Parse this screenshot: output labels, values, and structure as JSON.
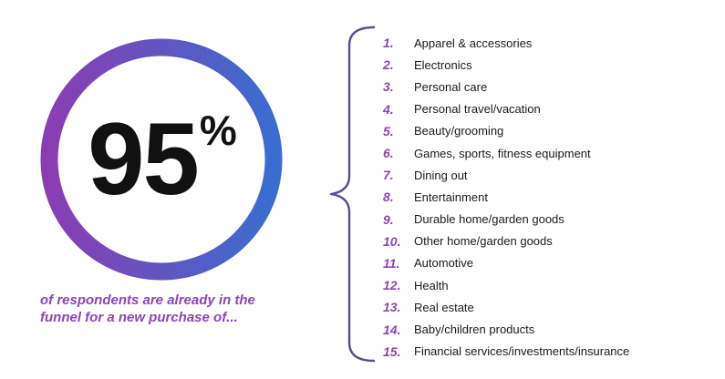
{
  "colors": {
    "ring_gradient_start": "#8a3db3",
    "ring_gradient_end": "#3a6dd0",
    "accent_purple": "#8c45b5",
    "brace": "#5b4a9a",
    "text_dark": "#111111"
  },
  "headline": {
    "number": "95",
    "suffix": "%"
  },
  "caption": {
    "line1": "of respondents are already in the",
    "line2": "funnel for a new purchase of..."
  },
  "list": {
    "items": [
      {
        "index": "1.",
        "label": "Apparel & accessories"
      },
      {
        "index": "2.",
        "label": "Electronics"
      },
      {
        "index": "3.",
        "label": "Personal care"
      },
      {
        "index": "4.",
        "label": "Personal travel/vacation"
      },
      {
        "index": "5.",
        "label": "Beauty/grooming"
      },
      {
        "index": "6.",
        "label": "Games, sports, fitness equipment"
      },
      {
        "index": "7.",
        "label": "Dining out"
      },
      {
        "index": "8.",
        "label": "Entertainment"
      },
      {
        "index": "9.",
        "label": "Durable home/garden goods"
      },
      {
        "index": "10.",
        "label": "Other home/garden goods"
      },
      {
        "index": "11.",
        "label": "Automotive"
      },
      {
        "index": "12.",
        "label": "Health"
      },
      {
        "index": "13.",
        "label": "Real estate"
      },
      {
        "index": "14.",
        "label": "Baby/children products"
      },
      {
        "index": "15.",
        "label": "Financial services/investments/insurance"
      }
    ]
  }
}
